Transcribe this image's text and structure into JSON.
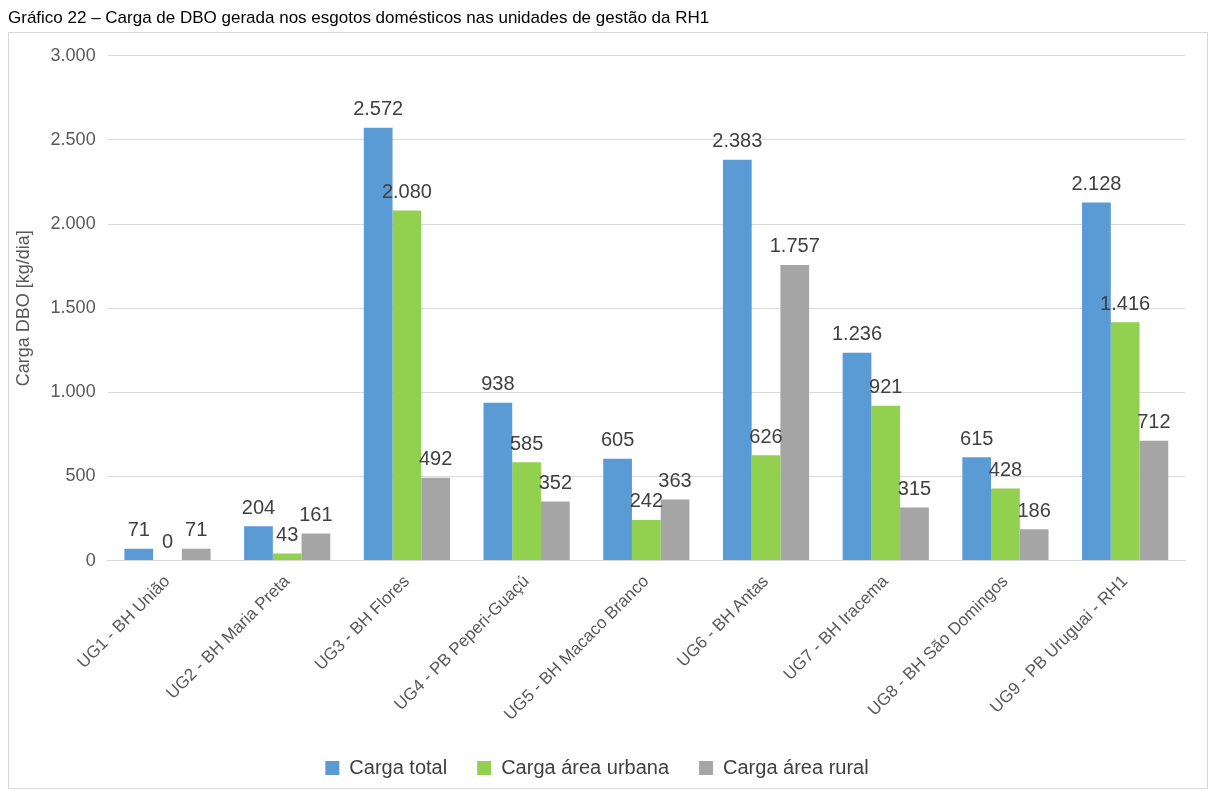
{
  "chart_data": {
    "type": "bar",
    "title": "Gráfico 22 – Carga de DBO gerada nos esgotos domésticos nas unidades de gestão da RH1",
    "ylabel": "Carga DBO [kg/dia]",
    "categories": [
      "UG1 - BH União",
      "UG2 - BH Maria Preta",
      "UG3 - BH Flores",
      "UG4 - PB Peperi-Guaçú",
      "UG5 - BH Macaco Branco",
      "UG6 - BH Antas",
      "UG7 - BH Iracema",
      "UG8 - BH São Domingos",
      "UG9 - PB Uruguai - RH1"
    ],
    "series": [
      {
        "name": "Carga total",
        "color": "#5b9bd5",
        "values": [
          71,
          204,
          2572,
          938,
          605,
          2383,
          1236,
          615,
          2128
        ],
        "value_labels": [
          "71",
          "204",
          "2.572",
          "938",
          "605",
          "2.383",
          "1.236",
          "615",
          "2.128"
        ]
      },
      {
        "name": "Carga área urbana",
        "color": "#92d050",
        "values": [
          0,
          43,
          2080,
          585,
          242,
          626,
          921,
          428,
          1416
        ],
        "value_labels": [
          "0",
          "43",
          "2.080",
          "585",
          "242",
          "626",
          "921",
          "428",
          "1.416"
        ]
      },
      {
        "name": "Carga área rural",
        "color": "#a5a5a5",
        "values": [
          71,
          161,
          492,
          352,
          363,
          1757,
          315,
          186,
          712
        ],
        "value_labels": [
          "71",
          "161",
          "492",
          "352",
          "363",
          "1.757",
          "315",
          "186",
          "712"
        ]
      }
    ],
    "ylim": [
      0,
      3000
    ],
    "yticks": [
      {
        "value": 0,
        "label": "0"
      },
      {
        "value": 500,
        "label": "500"
      },
      {
        "value": 1000,
        "label": "1.000"
      },
      {
        "value": 1500,
        "label": "1.500"
      },
      {
        "value": 2000,
        "label": "2.000"
      },
      {
        "value": 2500,
        "label": "2.500"
      },
      {
        "value": 3000,
        "label": "3.000"
      }
    ],
    "grid": "y",
    "legend": "bottom"
  }
}
